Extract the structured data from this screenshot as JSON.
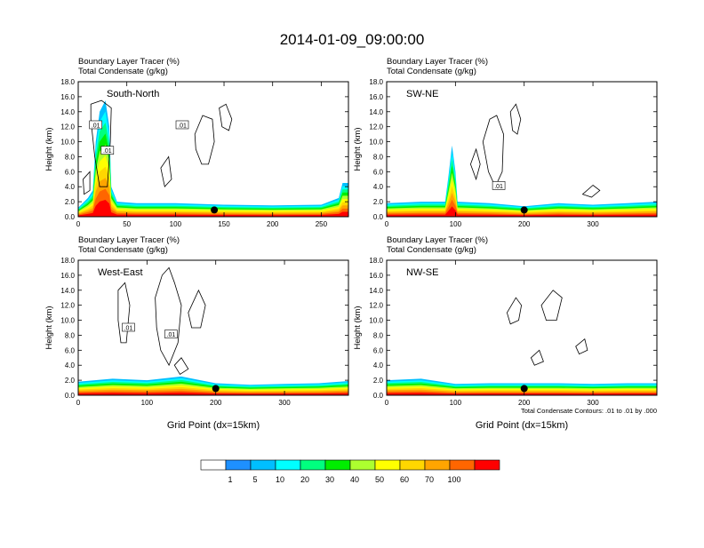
{
  "title": "2014-01-09_09:00:00",
  "colors": {
    "contour_line": "#000000",
    "marker": "#000000",
    "frame": "#000000"
  },
  "colorbar": {
    "labels": [
      "1",
      "5",
      "10",
      "20",
      "30",
      "40",
      "50",
      "60",
      "70",
      "100"
    ],
    "colors": [
      "#ffffff",
      "#1e90ff",
      "#00bfff",
      "#00ffff",
      "#00ff7f",
      "#00ee00",
      "#adff2f",
      "#ffff00",
      "#ffd700",
      "#ffa500",
      "#ff6600",
      "#ff0000"
    ]
  },
  "chart_data": [
    {
      "type": "heatmap",
      "name": "South-North",
      "label": "South-North",
      "title_line1": "Boundary Layer Tracer   (%)",
      "title_line2": "Total Condensate   (g/kg)",
      "ylabel": "Height (km)",
      "xlabel": "",
      "xlim": [
        0,
        278
      ],
      "ylim": [
        0,
        18
      ],
      "xticks": [
        0,
        50,
        100,
        150,
        200,
        250
      ],
      "yticks": [
        0,
        2,
        4,
        6,
        8,
        10,
        12,
        14,
        16,
        18
      ],
      "ytick_labels": [
        "0.0",
        "2.0",
        "4.0",
        "6.0",
        "8.0",
        "10.0",
        "12.0",
        "14.0",
        "16.0",
        "18.0"
      ],
      "marker_x": 140,
      "contour_labels": [
        {
          "text": ".01",
          "x": 18,
          "y": 12.2
        },
        {
          "text": ".01",
          "x": 30,
          "y": 8.8
        },
        {
          "text": ".01",
          "x": 107,
          "y": 12.2
        }
      ],
      "boundary_layer_top": [
        [
          0,
          1.2
        ],
        [
          10,
          2.5
        ],
        [
          15,
          3.5
        ],
        [
          18,
          10
        ],
        [
          22,
          14
        ],
        [
          28,
          15.5
        ],
        [
          32,
          12
        ],
        [
          34,
          4
        ],
        [
          40,
          2.0
        ],
        [
          60,
          1.8
        ],
        [
          100,
          1.8
        ],
        [
          150,
          1.6
        ],
        [
          200,
          1.5
        ],
        [
          250,
          1.6
        ],
        [
          268,
          2.5
        ],
        [
          272,
          4.5
        ],
        [
          278,
          4.5
        ]
      ],
      "clouds": [
        [
          [
            13,
            15
          ],
          [
            24,
            15.5
          ],
          [
            34,
            14.5
          ],
          [
            33,
            10
          ],
          [
            30,
            4
          ],
          [
            22,
            4
          ],
          [
            17,
            8
          ],
          [
            13,
            13
          ]
        ],
        [
          [
            120,
            11
          ],
          [
            128,
            13.5
          ],
          [
            138,
            13
          ],
          [
            140,
            10
          ],
          [
            134,
            7
          ],
          [
            127,
            7
          ],
          [
            121,
            9
          ]
        ],
        [
          [
            145,
            14.5
          ],
          [
            152,
            15
          ],
          [
            158,
            13
          ],
          [
            155,
            11.5
          ],
          [
            148,
            12
          ]
        ],
        [
          [
            85,
            6.5
          ],
          [
            93,
            8
          ],
          [
            96,
            5
          ],
          [
            89,
            4
          ]
        ],
        [
          [
            5,
            5
          ],
          [
            12,
            6
          ],
          [
            12,
            3.5
          ],
          [
            6,
            3
          ]
        ]
      ]
    },
    {
      "type": "heatmap",
      "name": "SW-NE",
      "label": "SW-NE",
      "title_line1": "Boundary Layer Tracer   (%)",
      "title_line2": "Total Condensate   (g/kg)",
      "ylabel": "Height (km)",
      "xlabel": "",
      "xlim": [
        0,
        393
      ],
      "ylim": [
        0,
        18
      ],
      "xticks": [
        0,
        100,
        200,
        300
      ],
      "yticks": [
        0,
        2,
        4,
        6,
        8,
        10,
        12,
        14,
        16,
        18
      ],
      "ytick_labels": [
        "0.0",
        "2.0",
        "4.0",
        "6.0",
        "8.0",
        "10.0",
        "12.0",
        "14.0",
        "16.0",
        "18.0"
      ],
      "marker_x": 200,
      "contour_labels": [
        {
          "text": ".01",
          "x": 163,
          "y": 4.1
        }
      ],
      "boundary_layer_top": [
        [
          0,
          1.8
        ],
        [
          50,
          2.0
        ],
        [
          85,
          2.0
        ],
        [
          90,
          5.5
        ],
        [
          95,
          9.5
        ],
        [
          100,
          6
        ],
        [
          103,
          2.0
        ],
        [
          150,
          1.8
        ],
        [
          200,
          1.4
        ],
        [
          250,
          1.8
        ],
        [
          300,
          1.6
        ],
        [
          350,
          1.8
        ],
        [
          393,
          2.0
        ]
      ],
      "clouds": [
        [
          [
            140,
            10
          ],
          [
            150,
            13
          ],
          [
            160,
            13.5
          ],
          [
            170,
            11
          ],
          [
            168,
            6
          ],
          [
            158,
            4
          ],
          [
            148,
            6
          ]
        ],
        [
          [
            180,
            14
          ],
          [
            188,
            15
          ],
          [
            195,
            13
          ],
          [
            190,
            11
          ],
          [
            183,
            11.5
          ]
        ],
        [
          [
            122,
            7
          ],
          [
            130,
            9
          ],
          [
            136,
            7
          ],
          [
            130,
            5
          ]
        ],
        [
          [
            285,
            3
          ],
          [
            300,
            4.2
          ],
          [
            310,
            3.5
          ],
          [
            298,
            2.6
          ]
        ]
      ]
    },
    {
      "type": "heatmap",
      "name": "West-East",
      "label": "West-East",
      "title_line1": "Boundary Layer Tracer   (%)",
      "title_line2": "Total Condensate   (g/kg)",
      "ylabel": "Height (km)",
      "xlabel": "Grid Point (dx=15km)",
      "xlim": [
        0,
        393
      ],
      "ylim": [
        0,
        18
      ],
      "xticks": [
        0,
        100,
        200,
        300
      ],
      "yticks": [
        0,
        2,
        4,
        6,
        8,
        10,
        12,
        14,
        16,
        18
      ],
      "ytick_labels": [
        "0.0",
        "2.0",
        "4.0",
        "6.0",
        "8.0",
        "10.0",
        "12.0",
        "14.0",
        "16.0",
        "18.0"
      ],
      "marker_x": 200,
      "contour_labels": [
        {
          "text": ".01",
          "x": 73,
          "y": 9.0
        },
        {
          "text": ".01",
          "x": 135,
          "y": 8.1
        }
      ],
      "boundary_layer_top": [
        [
          0,
          1.8
        ],
        [
          50,
          2.2
        ],
        [
          100,
          2.0
        ],
        [
          150,
          2.5
        ],
        [
          200,
          1.6
        ],
        [
          250,
          1.4
        ],
        [
          300,
          1.5
        ],
        [
          350,
          1.6
        ],
        [
          393,
          1.9
        ]
      ],
      "clouds": [
        [
          [
            58,
            14
          ],
          [
            68,
            15
          ],
          [
            75,
            12
          ],
          [
            70,
            7
          ],
          [
            62,
            7
          ],
          [
            58,
            10
          ]
        ],
        [
          [
            112,
            13
          ],
          [
            122,
            16
          ],
          [
            132,
            17
          ],
          [
            140,
            15
          ],
          [
            150,
            12
          ],
          [
            145,
            7
          ],
          [
            132,
            4
          ],
          [
            120,
            6
          ],
          [
            114,
            9
          ]
        ],
        [
          [
            160,
            11
          ],
          [
            175,
            14
          ],
          [
            185,
            12
          ],
          [
            178,
            9
          ],
          [
            165,
            9
          ]
        ],
        [
          [
            140,
            4
          ],
          [
            150,
            5
          ],
          [
            160,
            3.5
          ],
          [
            148,
            2.8
          ]
        ]
      ]
    },
    {
      "type": "heatmap",
      "name": "NW-SE",
      "label": "NW-SE",
      "title_line1": "Boundary Layer Tracer   (%)",
      "title_line2": "Total Condensate   (g/kg)",
      "ylabel": "Height (km)",
      "xlabel": "Grid Point (dx=15km)",
      "xlim": [
        0,
        393
      ],
      "ylim": [
        0,
        18
      ],
      "xticks": [
        0,
        100,
        200,
        300
      ],
      "yticks": [
        0,
        2,
        4,
        6,
        8,
        10,
        12,
        14,
        16,
        18
      ],
      "ytick_labels": [
        "0.0",
        "2.0",
        "4.0",
        "6.0",
        "8.0",
        "10.0",
        "12.0",
        "14.0",
        "16.0",
        "18.0"
      ],
      "marker_x": 200,
      "contour_note": "Total Condensate Contours: .01 to .01 by .000",
      "contour_labels": [],
      "boundary_layer_top": [
        [
          0,
          2.0
        ],
        [
          50,
          2.2
        ],
        [
          100,
          1.5
        ],
        [
          150,
          1.6
        ],
        [
          200,
          1.6
        ],
        [
          250,
          1.6
        ],
        [
          300,
          1.5
        ],
        [
          350,
          1.6
        ],
        [
          393,
          1.6
        ]
      ],
      "clouds": [
        [
          [
            175,
            11
          ],
          [
            188,
            13
          ],
          [
            196,
            12
          ],
          [
            192,
            10
          ],
          [
            180,
            9.5
          ]
        ],
        [
          [
            225,
            12
          ],
          [
            242,
            14
          ],
          [
            255,
            13
          ],
          [
            247,
            10
          ],
          [
            232,
            10
          ]
        ],
        [
          [
            275,
            6.5
          ],
          [
            288,
            7.5
          ],
          [
            292,
            6
          ],
          [
            280,
            5.5
          ]
        ],
        [
          [
            210,
            5
          ],
          [
            222,
            6
          ],
          [
            228,
            4.5
          ],
          [
            215,
            4
          ]
        ]
      ]
    }
  ]
}
